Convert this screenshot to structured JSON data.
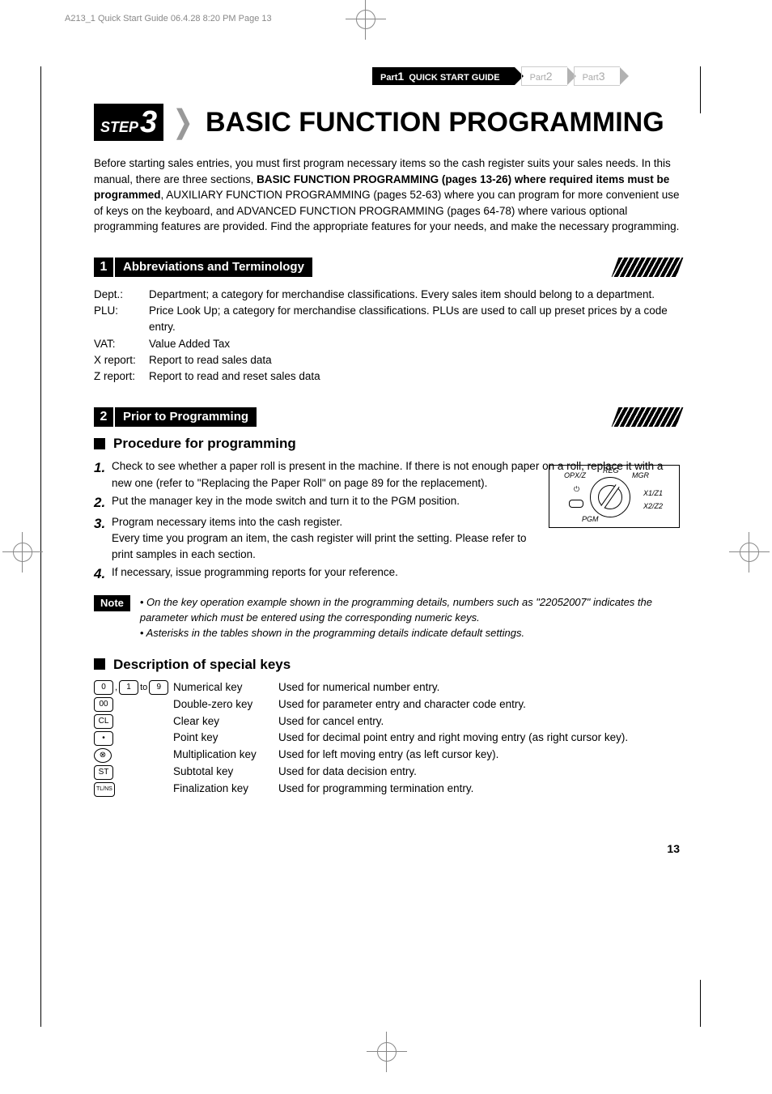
{
  "header_line": "A213_1 Quick Start Guide  06.4.28 8:20 PM  Page 13",
  "tabs": {
    "t1_pre": "Part",
    "t1_num": "1",
    "t1_title": "QUICK START GUIDE",
    "t2_pre": "Part",
    "t2_num": "2",
    "t3_pre": "Part",
    "t3_num": "3"
  },
  "step": {
    "label": "STEP",
    "num": "3"
  },
  "title": "BASIC FUNCTION PROGRAMMING",
  "intro_pre": "Before starting sales entries, you must first program necessary items so the cash register suits your sales needs.  In this manual, there are three sections, ",
  "intro_bold": "BASIC FUNCTION PROGRAMMING (pages 13-26) where required items must be programmed",
  "intro_post": ", AUXILIARY FUNCTION PROGRAMMING (pages 52-63) where you can program for more convenient use of keys on the keyboard, and ADVANCED FUNCTION PROGRAMMING (pages 64-78) where various optional programming features are provided.  Find the appropriate features for your needs, and make the necessary programming.",
  "sec1": {
    "num": "1",
    "title": "Abbreviations and Terminology"
  },
  "defs": [
    {
      "term": "Dept.:",
      "def": "Department; a category for merchandise classifications.  Every sales item should belong to a department."
    },
    {
      "term": "PLU:",
      "def": "Price Look Up; a category for merchandise classifications.  PLUs are used to call up preset prices by a code entry."
    },
    {
      "term": "VAT:",
      "def": "Value Added Tax"
    },
    {
      "term": "X report:",
      "def": "Report to read sales data"
    },
    {
      "term": "Z report:",
      "def": "Report to read and reset sales data"
    }
  ],
  "sec2": {
    "num": "2",
    "title": "Prior to Programming"
  },
  "sub1": "Procedure for programming",
  "proc": [
    "Check to see whether a paper roll is present in the machine.  If there is not enough paper on a roll, replace it with a new one (refer to \"Replacing the Paper Roll\" on page 89 for the replacement).",
    "Put the manager key in the mode switch and turn it to the PGM position.",
    "Program necessary items into the cash register.\nEvery time you program an item, the cash register will print the setting.  Please refer to print samples in each section.",
    "If necessary, issue programming reports for your reference."
  ],
  "dial": {
    "reg": "REG",
    "opxz": "OPX/Z",
    "mgr": "MGR",
    "x1z1": "X1/Z1",
    "x2z2": "X2/Z2",
    "pgm": "PGM"
  },
  "note_label": "Note",
  "note1": "• On the key operation example shown in the programming details, numbers such as \"22052007\" indicates the parameter which must be entered using the corresponding numeric keys.",
  "note2": "• Asterisks in the tables shown in the programming details indicate default settings.",
  "sub2": "Description of special keys",
  "keys": [
    {
      "icons": [
        "0",
        ",",
        "1",
        "to",
        "9"
      ],
      "name": "Numerical key",
      "desc": "Used for numerical number entry."
    },
    {
      "icons": [
        "00"
      ],
      "name": "Double-zero key",
      "desc": "Used for parameter entry and character code entry."
    },
    {
      "icons": [
        "CL"
      ],
      "name": "Clear key",
      "desc": "Used for cancel entry."
    },
    {
      "icons": [
        "•"
      ],
      "name": "Point key",
      "desc": "Used for decimal point entry and right moving entry (as right cursor key)."
    },
    {
      "icons": [
        "⊗"
      ],
      "round": true,
      "name": "Multiplication key",
      "desc": "Used for left moving entry (as left cursor key)."
    },
    {
      "icons": [
        "ST"
      ],
      "name": "Subtotal key",
      "desc": "Used for data decision entry."
    },
    {
      "icons": [
        "TL/NS"
      ],
      "name": "Finalization key",
      "desc": "Used for programming termination entry."
    }
  ],
  "page_number": "13"
}
